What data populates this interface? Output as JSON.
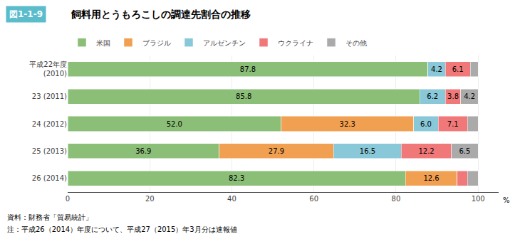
{
  "chart_data": {
    "type": "bar",
    "orientation": "horizontal",
    "stacked": true,
    "title_box": "図1-1-9",
    "title": "飼料用とうもろこしの調達先割合の推移",
    "xlabel": "%",
    "annotations": [
      "資料：財務省「貿易統計」",
      "注：平成26（2014）年度について、平成27（2015）年3月分は速報値"
    ],
    "categories": [
      "平成22年度\n(2010)",
      "23 (2011)",
      "24 (2012)",
      "25 (2013)",
      "26 (2014)"
    ],
    "series": [
      {
        "name": "米国",
        "color": "#8bbf78",
        "values": [
          87.8,
          85.8,
          52.0,
          36.9,
          82.3
        ],
        "value_labels": [
          "87.8",
          "85.8",
          "52.0",
          "36.9",
          "82.3"
        ]
      },
      {
        "name": "ブラジル",
        "color": "#f0a050",
        "values": [
          0.0,
          0.0,
          32.3,
          27.9,
          12.6
        ],
        "value_labels": [
          null,
          null,
          "32.3",
          "27.9",
          "12.6"
        ]
      },
      {
        "name": "アルゼンチン",
        "color": "#88c8d8",
        "values": [
          4.2,
          6.2,
          6.0,
          16.5,
          0.0
        ],
        "value_labels": [
          "4.2",
          "6.2",
          "6.0",
          "16.5",
          null
        ]
      },
      {
        "name": "ウクライナ",
        "color": "#f07878",
        "values": [
          6.1,
          3.8,
          7.1,
          12.2,
          2.5
        ],
        "value_labels": [
          "6.1",
          "3.8",
          "7.1",
          "12.2",
          null
        ]
      },
      {
        "name": "その他",
        "color": "#aaaaaa",
        "values": [
          1.9,
          4.2,
          2.6,
          6.5,
          2.6
        ],
        "value_labels": [
          null,
          "4.2",
          null,
          "6.5",
          null
        ]
      }
    ],
    "xlim": [
      0,
      105
    ],
    "xticks": [
      0,
      20,
      40,
      60,
      80,
      100
    ],
    "grid": true,
    "data_labels": true,
    "legend": "top"
  }
}
